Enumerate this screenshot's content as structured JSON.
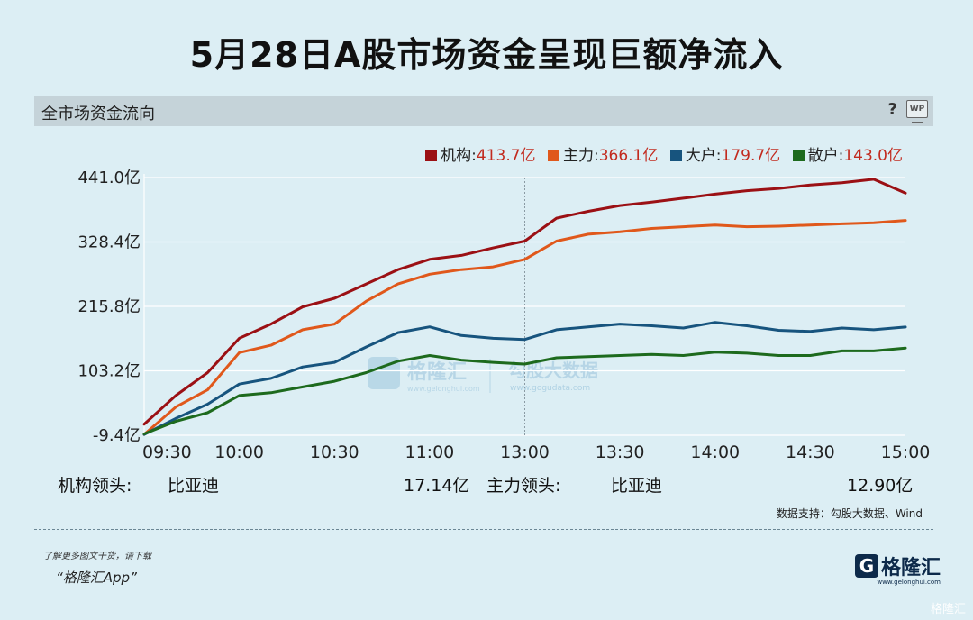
{
  "title": "5月28日A股市场资金呈现巨额净流入",
  "panel": {
    "title": "全市场资金流向",
    "help": "?",
    "wp": "WP"
  },
  "legend": [
    {
      "name": "机构",
      "value": "413.7亿",
      "color": "#9b1014"
    },
    {
      "name": "主力",
      "value": "366.1亿",
      "color": "#e0581b"
    },
    {
      "name": "大户",
      "value": "179.7亿",
      "color": "#17547e"
    },
    {
      "name": "散户",
      "value": "143.0亿",
      "color": "#1d6a1d"
    }
  ],
  "leaders": {
    "inst_label": "机构领头:",
    "inst_name": "比亚迪",
    "inst_value": "17.14亿",
    "main_label": "主力领头:",
    "main_name": "比亚迪",
    "main_value": "12.90亿"
  },
  "source": "数据支持：勾股大数据、Wind",
  "footer": {
    "note": "了解更多图文干货，请下载",
    "app": "“格隆汇App”"
  },
  "logo": {
    "mark": "G",
    "text": "格隆汇",
    "sub": "www.gelonghui.com"
  },
  "watermark": {
    "main": "格隆汇",
    "sub": "www.gelonghui.com",
    "side": "勾股大数据",
    "side_sub": "www.gogudata.com"
  },
  "corner_watermark": "格隆汇",
  "chart_data": {
    "type": "line",
    "ylim": [
      -9.4,
      441.0
    ],
    "yticks": [
      -9.4,
      103.2,
      215.8,
      328.4,
      441.0
    ],
    "ytick_labels": [
      "-9.4亿",
      "103.2亿",
      "215.8亿",
      "328.4亿",
      "441.0亿"
    ],
    "x_labels": [
      "09:30",
      "10:00",
      "10:30",
      "11:00",
      "13:00",
      "13:30",
      "14:00",
      "14:30",
      "15:00"
    ],
    "x": [
      "09:30",
      "09:40",
      "09:50",
      "10:00",
      "10:10",
      "10:20",
      "10:30",
      "10:40",
      "10:50",
      "11:00",
      "11:10",
      "11:20",
      "11:30",
      "13:10",
      "13:20",
      "13:30",
      "13:40",
      "13:50",
      "14:00",
      "14:10",
      "14:20",
      "14:30",
      "14:40",
      "14:50",
      "15:00"
    ],
    "series": [
      {
        "name": "机构",
        "color": "#9b1014",
        "values": [
          10,
          60,
          100,
          160,
          185,
          215,
          230,
          255,
          280,
          298,
          305,
          318,
          330,
          370,
          382,
          392,
          398,
          405,
          412,
          418,
          422,
          428,
          432,
          438,
          413.7
        ]
      },
      {
        "name": "主力",
        "color": "#e0581b",
        "values": [
          -8,
          40,
          70,
          135,
          148,
          175,
          185,
          225,
          255,
          272,
          280,
          285,
          298,
          330,
          342,
          346,
          352,
          355,
          358,
          355,
          356,
          358,
          360,
          362,
          366.1
        ]
      },
      {
        "name": "大户",
        "color": "#17547e",
        "values": [
          -8,
          20,
          45,
          80,
          90,
          110,
          118,
          145,
          170,
          180,
          165,
          160,
          158,
          175,
          180,
          185,
          182,
          178,
          188,
          182,
          174,
          172,
          178,
          175,
          179.7
        ]
      },
      {
        "name": "散户",
        "color": "#1d6a1d",
        "values": [
          -7,
          15,
          30,
          60,
          65,
          75,
          85,
          100,
          120,
          130,
          122,
          118,
          115,
          126,
          128,
          130,
          132,
          130,
          136,
          134,
          130,
          130,
          138,
          138,
          143.0
        ]
      }
    ]
  }
}
